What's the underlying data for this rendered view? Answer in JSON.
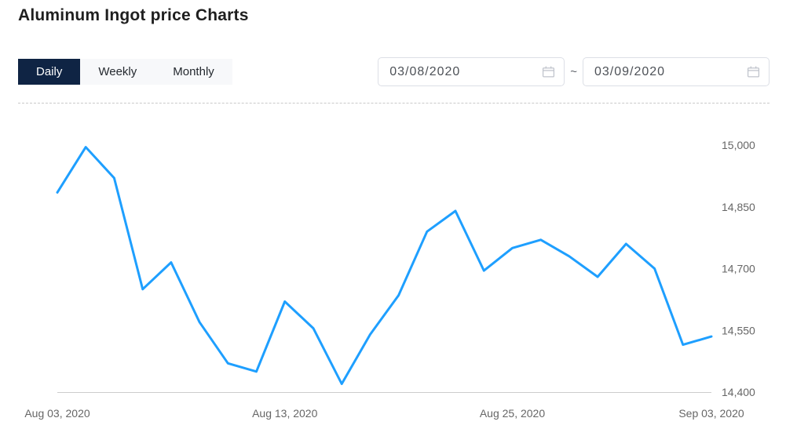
{
  "header": {
    "title": "Aluminum Ingot price Charts"
  },
  "tabs": {
    "daily": {
      "label": "Daily",
      "active": true
    },
    "weekly": {
      "label": "Weekly",
      "active": false
    },
    "monthly": {
      "label": "Monthly",
      "active": false
    }
  },
  "date_range": {
    "start": "03/08/2020",
    "end": "03/09/2020",
    "separator": "~"
  },
  "colors": {
    "line": "#1E9FFF",
    "tab_active_bg": "#0F2444",
    "tab_active_text": "#FFFFFF",
    "tab_inactive_bg": "#F7F8FA",
    "axis_text": "#666666",
    "axis_line": "#CCCCCC"
  },
  "chart_data": {
    "type": "line",
    "title": "Aluminum Ingot price Charts",
    "series_name": "Aluminum Ingot price",
    "x": [
      "Aug 03, 2020",
      "Aug 04, 2020",
      "Aug 05, 2020",
      "Aug 06, 2020",
      "Aug 07, 2020",
      "Aug 10, 2020",
      "Aug 11, 2020",
      "Aug 12, 2020",
      "Aug 13, 2020",
      "Aug 14, 2020",
      "Aug 17, 2020",
      "Aug 18, 2020",
      "Aug 19, 2020",
      "Aug 20, 2020",
      "Aug 21, 2020",
      "Aug 24, 2020",
      "Aug 25, 2020",
      "Aug 26, 2020",
      "Aug 27, 2020",
      "Aug 28, 2020",
      "Aug 31, 2020",
      "Sep 01, 2020",
      "Sep 02, 2020",
      "Sep 03, 2020"
    ],
    "values": [
      14885,
      14995,
      14920,
      14650,
      14715,
      14570,
      14470,
      14450,
      14620,
      14555,
      14420,
      14540,
      14635,
      14790,
      14840,
      14695,
      14750,
      14770,
      14730,
      14680,
      14760,
      14700,
      14515,
      14535
    ],
    "x_tick_labels": [
      "Aug 03, 2020",
      "Aug 13, 2020",
      "Aug 25, 2020",
      "Sep 03, 2020"
    ],
    "x_tick_indices": [
      0,
      8,
      16,
      23
    ],
    "y_ticks": [
      14400,
      14550,
      14700,
      14850,
      15000
    ],
    "y_tick_labels": [
      "14,400",
      "14,550",
      "14,700",
      "14,850",
      "15,000"
    ],
    "ylim": [
      14400,
      15000
    ],
    "grid": false,
    "legend": "none",
    "line_color": "#1E9FFF"
  }
}
